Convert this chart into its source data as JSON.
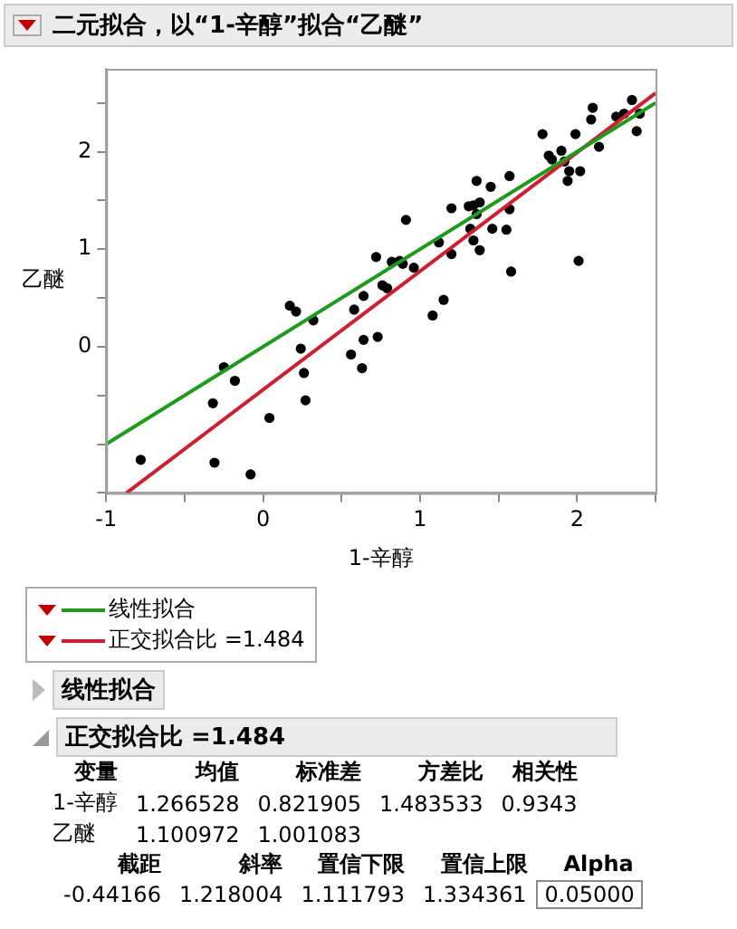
{
  "chart_data": {
    "type": "scatter",
    "title": "二元拟合，以“1-辛醇”拟合“乙醚”",
    "xlabel": "1-辛醇",
    "ylabel": "乙醚",
    "xlim": [
      -1,
      2.5
    ],
    "ylim": [
      -1.5,
      2.85
    ],
    "xticks": [
      -1,
      {
        "value": -0.5,
        "label": null
      },
      0,
      {
        "value": 0.5,
        "label": null
      },
      1,
      {
        "value": 1.5,
        "label": null
      },
      2,
      {
        "value": 2.5,
        "label": null
      }
    ],
    "yticks": [
      {
        "value": -1.5,
        "label": null
      },
      {
        "value": -1,
        "label": null
      },
      {
        "value": -0.5,
        "label": null
      },
      0,
      {
        "value": 0.5,
        "label": null
      },
      1,
      {
        "value": 1.5,
        "label": null
      },
      2,
      {
        "value": 2.5,
        "label": null
      }
    ],
    "grid": false,
    "legend": "bottom",
    "series": [
      {
        "type": "scatter",
        "marker": "circle",
        "color": "#000000",
        "x": [
          -0.78,
          -0.32,
          -0.31,
          -0.25,
          -0.18,
          -0.08,
          0.04,
          0.17,
          0.21,
          0.24,
          0.26,
          0.27,
          0.32,
          0.56,
          0.58,
          0.63,
          0.64,
          0.64,
          0.72,
          0.73,
          0.76,
          0.79,
          0.82,
          0.87,
          0.89,
          0.91,
          0.96,
          1.08,
          1.12,
          1.15,
          1.2,
          1.2,
          1.31,
          1.32,
          1.34,
          1.34,
          1.36,
          1.36,
          1.38,
          1.38,
          1.45,
          1.46,
          1.55,
          1.57,
          1.57,
          1.58,
          1.78,
          1.82,
          1.84,
          1.9,
          1.92,
          1.94,
          1.95,
          1.99,
          2.01,
          2.02,
          2.09,
          2.1,
          2.14,
          2.25,
          2.3,
          2.35,
          2.38,
          2.4
        ],
        "values": [
          -1.16,
          -0.58,
          -1.19,
          -0.21,
          -0.35,
          -1.31,
          -0.73,
          0.42,
          0.36,
          -0.02,
          -0.27,
          -0.55,
          0.27,
          -0.08,
          0.38,
          -0.22,
          0.07,
          0.52,
          0.92,
          0.1,
          0.63,
          0.6,
          0.87,
          0.88,
          0.85,
          1.3,
          0.81,
          0.32,
          1.07,
          0.48,
          0.95,
          1.42,
          1.44,
          1.21,
          1.45,
          1.09,
          1.7,
          1.36,
          0.99,
          1.48,
          1.64,
          1.21,
          1.2,
          1.75,
          1.41,
          0.77,
          2.18,
          1.96,
          1.92,
          2.01,
          1.9,
          1.7,
          1.8,
          2.18,
          0.88,
          1.8,
          2.33,
          2.45,
          2.05,
          2.36,
          2.39,
          2.53,
          2.21,
          2.39
        ]
      },
      {
        "type": "line",
        "marker": "none",
        "name": "线性拟合",
        "color": "#1f9a1f",
        "x": [
          -1,
          2.5
        ],
        "values": [
          -1.0,
          2.5
        ]
      },
      {
        "type": "line",
        "marker": "none",
        "name": "正交拟合比 =1.484",
        "color": "#cc1f2f",
        "x": [
          -0.87,
          2.5
        ],
        "values": [
          -1.5,
          2.6
        ]
      }
    ],
    "annotations": [
      "线性拟合",
      "正交拟合比 =1.484",
      "变量",
      "均值",
      "标准差",
      "方差比",
      "相关性",
      "1-辛醇",
      "1.266528",
      "0.821905",
      "1.483533",
      "0.9343",
      "乙醚",
      "1.100972",
      "1.001083",
      "截距",
      "斜率",
      "置信下限",
      "置信上限",
      "Alpha",
      "-0.44166",
      "1.218004",
      "1.111793",
      "1.334361",
      "0.05000"
    ]
  }
}
